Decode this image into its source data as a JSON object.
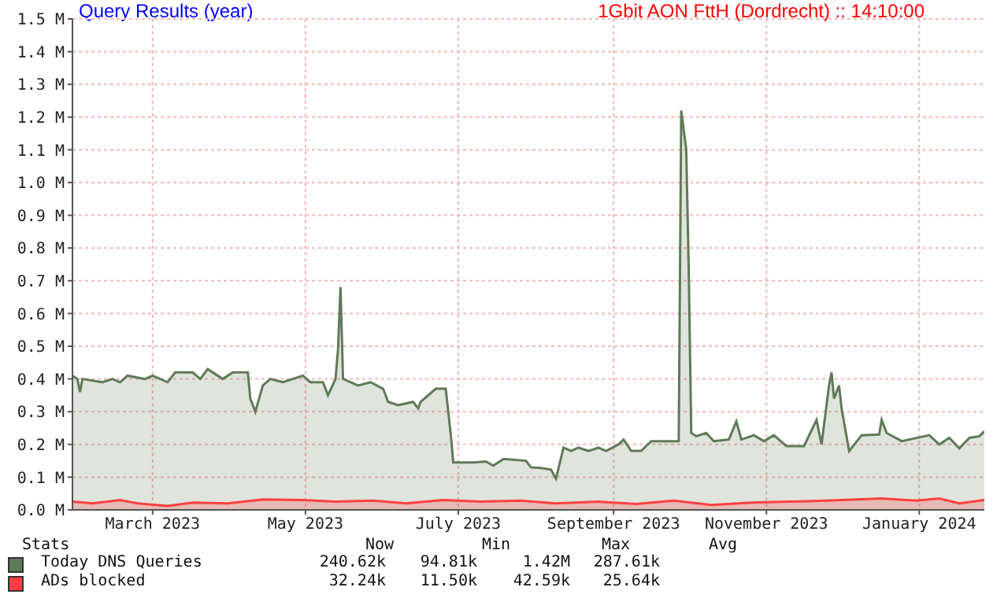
{
  "chart_data": {
    "type": "area",
    "title": "Query Results (year)",
    "subtitle": "1Gbit AON FttH (Dordrecht) :: 14:10:00",
    "xlim": [
      "2023-02-12",
      "2024-02-11"
    ],
    "xticks": [
      {
        "value": "2023-03-16",
        "label": "March 2023"
      },
      {
        "value": "2023-05-16",
        "label": "May 2023"
      },
      {
        "value": "2023-07-16",
        "label": "July 2023"
      },
      {
        "value": "2023-09-16",
        "label": "September 2023"
      },
      {
        "value": "2023-11-16",
        "label": "November 2023"
      },
      {
        "value": "2024-01-16",
        "label": "January 2024"
      }
    ],
    "ylim": [
      0,
      1.5
    ],
    "yticks": [
      {
        "value": 0,
        "label": "0.0 M"
      },
      {
        "value": 0.1,
        "label": "0.1 M"
      },
      {
        "value": 0.2,
        "label": "0.2 M"
      },
      {
        "value": 0.3,
        "label": "0.3 M"
      },
      {
        "value": 0.4,
        "label": "0.4 M"
      },
      {
        "value": 0.5,
        "label": "0.5 M"
      },
      {
        "value": 0.6,
        "label": "0.6 M"
      },
      {
        "value": 0.7,
        "label": "0.7 M"
      },
      {
        "value": 0.8,
        "label": "0.8 M"
      },
      {
        "value": 0.9,
        "label": "0.9 M"
      },
      {
        "value": 1.0,
        "label": "1.0 M"
      },
      {
        "value": 1.1,
        "label": "1.1 M"
      },
      {
        "value": 1.2,
        "label": "1.2 M"
      },
      {
        "value": 1.3,
        "label": "1.3 M"
      },
      {
        "value": 1.4,
        "label": "1.4 M"
      },
      {
        "value": 1.5,
        "label": "1.5 M"
      }
    ],
    "grid": true,
    "legend": "bottom",
    "series": [
      {
        "name": "Today DNS Queries",
        "color": "#5f7a57",
        "x": [
          "2023-02-12",
          "2023-02-14",
          "2023-02-15",
          "2023-02-16",
          "2023-02-24",
          "2023-02-28",
          "2023-03-03",
          "2023-03-06",
          "2023-03-13",
          "2023-03-16",
          "2023-03-22",
          "2023-03-25",
          "2023-04-01",
          "2023-04-04",
          "2023-04-07",
          "2023-04-13",
          "2023-04-17",
          "2023-04-23",
          "2023-04-24",
          "2023-04-26",
          "2023-04-29",
          "2023-05-02",
          "2023-05-07",
          "2023-05-15",
          "2023-05-18",
          "2023-05-23",
          "2023-05-25",
          "2023-05-28",
          "2023-05-29",
          "2023-05-30",
          "2023-05-31",
          "2023-06-06",
          "2023-06-11",
          "2023-06-16",
          "2023-06-18",
          "2023-06-22",
          "2023-06-28",
          "2023-06-30",
          "2023-07-01",
          "2023-07-07",
          "2023-07-11",
          "2023-07-13",
          "2023-07-14",
          "2023-07-22",
          "2023-07-27",
          "2023-07-30",
          "2023-08-03",
          "2023-08-04",
          "2023-08-12",
          "2023-08-14",
          "2023-08-18",
          "2023-08-22",
          "2023-08-24",
          "2023-08-27",
          "2023-08-30",
          "2023-09-02",
          "2023-09-06",
          "2023-09-10",
          "2023-09-13",
          "2023-09-18",
          "2023-09-20",
          "2023-09-23",
          "2023-09-27",
          "2023-10-01",
          "2023-10-10",
          "2023-10-12",
          "2023-10-13",
          "2023-10-15",
          "2023-10-16",
          "2023-10-17",
          "2023-10-19",
          "2023-10-23",
          "2023-10-26",
          "2023-11-01",
          "2023-11-04",
          "2023-11-06",
          "2023-11-11",
          "2023-11-15",
          "2023-11-19",
          "2023-11-24",
          "2023-12-01",
          "2023-12-06",
          "2023-12-08",
          "2023-12-11",
          "2023-12-12",
          "2023-12-13",
          "2023-12-15",
          "2023-12-16",
          "2023-12-19",
          "2023-12-24",
          "2023-12-31",
          "2024-01-01",
          "2024-01-03",
          "2024-01-09",
          "2024-01-20",
          "2024-01-24",
          "2024-01-28",
          "2024-02-01",
          "2024-02-05",
          "2024-02-09",
          "2024-02-11"
        ],
        "values": [
          0.41,
          0.4,
          0.36,
          0.4,
          0.39,
          0.4,
          0.39,
          0.41,
          0.4,
          0.41,
          0.39,
          0.42,
          0.42,
          0.4,
          0.43,
          0.4,
          0.42,
          0.42,
          0.34,
          0.3,
          0.38,
          0.4,
          0.39,
          0.41,
          0.39,
          0.39,
          0.35,
          0.4,
          0.49,
          0.68,
          0.4,
          0.38,
          0.39,
          0.37,
          0.33,
          0.32,
          0.33,
          0.31,
          0.33,
          0.37,
          0.37,
          0.23,
          0.145,
          0.145,
          0.148,
          0.135,
          0.155,
          0.155,
          0.15,
          0.13,
          0.128,
          0.123,
          0.095,
          0.19,
          0.18,
          0.19,
          0.18,
          0.19,
          0.18,
          0.2,
          0.215,
          0.18,
          0.18,
          0.21,
          0.21,
          0.21,
          1.22,
          1.1,
          0.73,
          0.235,
          0.225,
          0.235,
          0.21,
          0.215,
          0.27,
          0.215,
          0.228,
          0.21,
          0.228,
          0.195,
          0.195,
          0.275,
          0.2,
          0.38,
          0.42,
          0.34,
          0.38,
          0.31,
          0.18,
          0.228,
          0.23,
          0.275,
          0.235,
          0.21,
          0.228,
          0.2,
          0.22,
          0.188,
          0.22,
          0.225,
          0.24
        ]
      },
      {
        "name": "ADs blocked",
        "color": "#ff4040",
        "x": [
          "2023-02-12",
          "2023-02-20",
          "2023-03-03",
          "2023-03-10",
          "2023-03-22",
          "2023-04-01",
          "2023-04-15",
          "2023-04-29",
          "2023-05-15",
          "2023-05-28",
          "2023-06-12",
          "2023-06-25",
          "2023-07-10",
          "2023-07-25",
          "2023-08-10",
          "2023-08-24",
          "2023-09-10",
          "2023-09-25",
          "2023-10-10",
          "2023-10-25",
          "2023-11-10",
          "2023-11-25",
          "2023-12-10",
          "2024-01-01",
          "2024-01-15",
          "2024-01-24",
          "2024-02-01",
          "2024-02-11"
        ],
        "values": [
          0.025,
          0.02,
          0.03,
          0.02,
          0.012,
          0.022,
          0.02,
          0.032,
          0.03,
          0.025,
          0.028,
          0.02,
          0.03,
          0.025,
          0.028,
          0.02,
          0.025,
          0.018,
          0.028,
          0.015,
          0.022,
          0.025,
          0.028,
          0.035,
          0.028,
          0.035,
          0.02,
          0.03
        ]
      }
    ],
    "annotations": [
      "Stats",
      "Now",
      "Min",
      "Max",
      "Avg",
      "240.62k",
      "94.81k",
      "1.42M",
      "287.61k",
      "32.24k",
      "11.50k",
      "42.59k",
      "25.64k"
    ]
  }
}
